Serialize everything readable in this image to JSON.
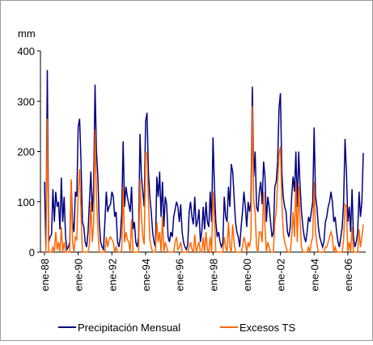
{
  "chart_data": {
    "type": "line",
    "y_label": "mm",
    "categories": [
      "ene-88",
      null,
      null,
      null,
      null,
      null,
      null,
      null,
      null,
      null,
      null,
      null,
      null,
      null,
      null,
      null,
      null,
      null,
      null,
      null,
      null,
      null,
      null,
      null,
      "ene-90",
      null,
      null,
      null,
      null,
      null,
      null,
      null,
      null,
      null,
      null,
      null,
      null,
      null,
      null,
      null,
      null,
      null,
      null,
      null,
      null,
      null,
      null,
      null,
      "ene-92",
      null,
      null,
      null,
      null,
      null,
      null,
      null,
      null,
      null,
      null,
      null,
      null,
      null,
      null,
      null,
      null,
      null,
      null,
      null,
      null,
      null,
      null,
      null,
      "ene-94",
      null,
      null,
      null,
      null,
      null,
      null,
      null,
      null,
      null,
      null,
      null,
      null,
      null,
      null,
      null,
      null,
      null,
      null,
      null,
      null,
      null,
      null,
      null,
      "ene-96",
      null,
      null,
      null,
      null,
      null,
      null,
      null,
      null,
      null,
      null,
      null,
      null,
      null,
      null,
      null,
      null,
      null,
      null,
      null,
      null,
      null,
      null,
      null,
      "ene-98",
      null,
      null,
      null,
      null,
      null,
      null,
      null,
      null,
      null,
      null,
      null,
      null,
      null,
      null,
      null,
      null,
      null,
      null,
      null,
      null,
      null,
      null,
      null,
      "ene-00",
      null,
      null,
      null,
      null,
      null,
      null,
      null,
      null,
      null,
      null,
      null,
      null,
      null,
      null,
      null,
      null,
      null,
      null,
      null,
      null,
      null,
      null,
      null,
      "ene-02",
      null,
      null,
      null,
      null,
      null,
      null,
      null,
      null,
      null,
      null,
      null,
      null,
      null,
      null,
      null,
      null,
      null,
      null,
      null,
      null,
      null,
      null,
      null,
      "ene-04",
      null,
      null,
      null,
      null,
      null,
      null,
      null,
      null,
      null,
      null,
      null,
      null,
      null,
      null,
      null,
      null,
      null,
      null,
      null,
      null,
      null,
      null,
      null,
      "ene-06",
      null,
      null,
      null,
      null,
      null,
      null,
      null,
      null,
      null,
      null,
      null
    ],
    "series": [
      {
        "name": "Precipitación Mensual",
        "color": "#000080",
        "values": [
          140,
          5,
          362,
          20,
          30,
          35,
          125,
          60,
          120,
          90,
          100,
          45,
          148,
          60,
          110,
          30,
          5,
          10,
          20,
          140,
          60,
          40,
          120,
          110,
          250,
          265,
          180,
          60,
          50,
          20,
          10,
          40,
          100,
          160,
          80,
          130,
          333,
          200,
          150,
          60,
          20,
          10,
          5,
          60,
          120,
          80,
          90,
          95,
          120,
          110,
          70,
          80,
          20,
          10,
          30,
          80,
          220,
          90,
          130,
          110,
          95,
          80,
          130,
          45,
          60,
          20,
          10,
          30,
          235,
          150,
          120,
          90,
          260,
          277,
          160,
          110,
          80,
          40,
          20,
          10,
          150,
          110,
          160,
          70,
          140,
          50,
          110,
          95,
          30,
          20,
          40,
          30,
          70,
          85,
          100,
          90,
          60,
          95,
          40,
          20,
          10,
          5,
          15,
          80,
          100,
          70,
          55,
          110,
          50,
          60,
          85,
          20,
          40,
          90,
          45,
          100,
          60,
          50,
          120,
          60,
          228,
          130,
          60,
          30,
          40,
          20,
          10,
          20,
          110,
          70,
          60,
          130,
          90,
          175,
          160,
          110,
          60,
          40,
          30,
          10,
          50,
          80,
          120,
          90,
          50,
          100,
          80,
          100,
          329,
          150,
          200,
          90,
          80,
          120,
          140,
          95,
          180,
          150,
          60,
          110,
          90,
          60,
          30,
          40,
          130,
          140,
          180,
          285,
          316,
          160,
          110,
          90,
          80,
          40,
          30,
          50,
          110,
          150,
          120,
          200,
          90,
          200,
          130,
          80,
          50,
          30,
          20,
          40,
          70,
          60,
          80,
          100,
          248,
          110,
          90,
          50,
          30,
          20,
          10,
          20,
          60,
          70,
          90,
          100,
          120,
          100,
          60,
          70,
          40,
          20,
          10,
          30,
          50,
          100,
          225,
          160,
          60,
          90,
          40,
          125,
          30,
          10,
          20,
          40,
          120,
          70,
          100,
          197
        ]
      },
      {
        "name": "Excesos TS",
        "color": "#ff6600",
        "values": [
          0,
          0,
          265,
          0,
          0,
          0,
          10,
          0,
          40,
          5,
          20,
          0,
          50,
          0,
          20,
          0,
          0,
          0,
          0,
          145,
          20,
          0,
          30,
          25,
          120,
          165,
          80,
          0,
          0,
          0,
          0,
          0,
          15,
          100,
          20,
          55,
          243,
          110,
          45,
          0,
          0,
          0,
          0,
          0,
          30,
          10,
          25,
          30,
          25,
          20,
          0,
          10,
          0,
          0,
          0,
          5,
          130,
          20,
          40,
          25,
          20,
          0,
          65,
          0,
          0,
          0,
          0,
          0,
          145,
          70,
          30,
          15,
          197,
          197,
          100,
          25,
          10,
          0,
          0,
          0,
          60,
          20,
          40,
          0,
          70,
          0,
          20,
          10,
          0,
          0,
          0,
          0,
          0,
          20,
          30,
          5,
          10,
          20,
          0,
          0,
          0,
          0,
          0,
          10,
          20,
          5,
          0,
          35,
          0,
          10,
          20,
          0,
          0,
          30,
          0,
          40,
          5,
          0,
          30,
          0,
          120,
          70,
          0,
          0,
          0,
          0,
          0,
          0,
          30,
          10,
          0,
          60,
          10,
          0,
          55,
          20,
          0,
          0,
          0,
          0,
          0,
          10,
          30,
          20,
          0,
          20,
          10,
          30,
          290,
          100,
          80,
          10,
          0,
          40,
          40,
          20,
          120,
          50,
          0,
          20,
          10,
          0,
          0,
          0,
          60,
          80,
          140,
          195,
          210,
          100,
          40,
          20,
          10,
          0,
          0,
          0,
          30,
          80,
          30,
          140,
          20,
          130,
          60,
          10,
          0,
          0,
          0,
          0,
          10,
          0,
          20,
          30,
          140,
          40,
          15,
          0,
          0,
          0,
          0,
          0,
          10,
          10,
          20,
          30,
          40,
          30,
          0,
          10,
          0,
          0,
          0,
          0,
          0,
          25,
          95,
          90,
          0,
          20,
          0,
          50,
          0,
          0,
          0,
          0,
          45,
          10,
          30,
          55
        ]
      }
    ],
    "ylim": [
      0,
      400
    ],
    "yticks": [
      0,
      100,
      200,
      300,
      400
    ],
    "legend": "bottom"
  }
}
